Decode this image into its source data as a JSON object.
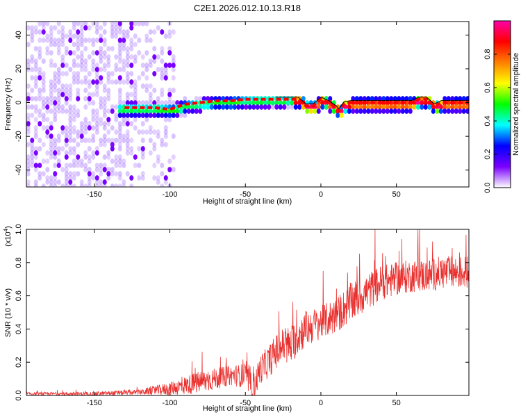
{
  "title": "C2E1.2026.012.10.13.R18",
  "chart_data": [
    {
      "type": "heatmap",
      "name": "spectrogram",
      "xlabel": "Height of straight line (km)",
      "ylabel": "Frequency (Hz)",
      "xlim": [
        -195,
        98
      ],
      "ylim": [
        -50,
        48
      ],
      "xticks": [
        -150,
        -100,
        -50,
        0,
        50
      ],
      "xtick_labels": [
        "-150",
        "-100",
        "-50",
        "0",
        "50"
      ],
      "yticks": [
        -40,
        -20,
        0,
        20,
        40
      ],
      "ytick_labels": [
        "-40",
        "-20",
        "0",
        "20",
        "40"
      ],
      "colorbar": {
        "label": "Normalized spectral amplitude",
        "range": [
          0,
          1
        ],
        "ticks": [
          0.0,
          0.2,
          0.4,
          0.6,
          0.8
        ],
        "tick_labels": [
          "0.0",
          "0.2",
          "0.4",
          "0.6",
          "0.8"
        ],
        "colors": [
          "#ffffff",
          "#7a00ff",
          "#0000ff",
          "#00ffff",
          "#00ff00",
          "#ffff00",
          "#ff8000",
          "#ff0000",
          "#ff00aa"
        ]
      },
      "ridge_line": {
        "x": [
          -130,
          -110,
          -100,
          -90,
          -80,
          -70,
          -60,
          -50,
          -40,
          -30,
          -20,
          -15,
          -10,
          -5,
          0,
          5,
          10,
          12,
          15,
          20,
          30,
          40,
          50,
          60,
          65,
          70,
          75,
          80,
          90,
          98
        ],
        "y": [
          -3,
          -3,
          -4,
          -1,
          0,
          1,
          1,
          2,
          2,
          2,
          2,
          2,
          -2,
          -2,
          2,
          0,
          -3,
          -5,
          -1,
          0,
          0,
          0,
          0,
          0,
          2,
          2,
          -2,
          0,
          0,
          0
        ]
      }
    },
    {
      "type": "line",
      "name": "snr",
      "xlabel": "Height of straight line (km)",
      "ylabel": "SNR (10 * v/v)",
      "exponent_label": "(x10",
      "exponent_sup": "4",
      "exponent_close": ")",
      "xlim": [
        -195,
        98
      ],
      "ylim": [
        0,
        1.0
      ],
      "xticks": [
        -150,
        -100,
        -50,
        0,
        50
      ],
      "xtick_labels": [
        "-150",
        "-100",
        "-50",
        "0",
        "50"
      ],
      "yticks": [
        0.0,
        0.2,
        0.4,
        0.6,
        0.8,
        1.0
      ],
      "ytick_labels": [
        "0.0",
        "0.2",
        "0.4",
        "0.6",
        "0.8",
        "1.0"
      ],
      "color": "#e8312f",
      "trend": {
        "x": [
          -195,
          -150,
          -120,
          -100,
          -80,
          -70,
          -60,
          -50,
          -45,
          -40,
          -35,
          -30,
          -25,
          -20,
          -15,
          -10,
          -5,
          0,
          10,
          20,
          30,
          40,
          50,
          60,
          70,
          80,
          90,
          98
        ],
        "y": [
          0.01,
          0.01,
          0.02,
          0.04,
          0.08,
          0.1,
          0.12,
          0.12,
          0.04,
          0.16,
          0.2,
          0.26,
          0.3,
          0.3,
          0.36,
          0.4,
          0.42,
          0.44,
          0.48,
          0.56,
          0.62,
          0.68,
          0.7,
          0.72,
          0.72,
          0.74,
          0.74,
          0.74
        ]
      },
      "noise_amplitude": {
        "x": [
          -195,
          -120,
          -100,
          -80,
          -60,
          -40,
          -20,
          0,
          20,
          50,
          98
        ],
        "y": [
          0.008,
          0.015,
          0.04,
          0.07,
          0.06,
          0.09,
          0.12,
          0.1,
          0.12,
          0.1,
          0.1
        ]
      }
    }
  ]
}
